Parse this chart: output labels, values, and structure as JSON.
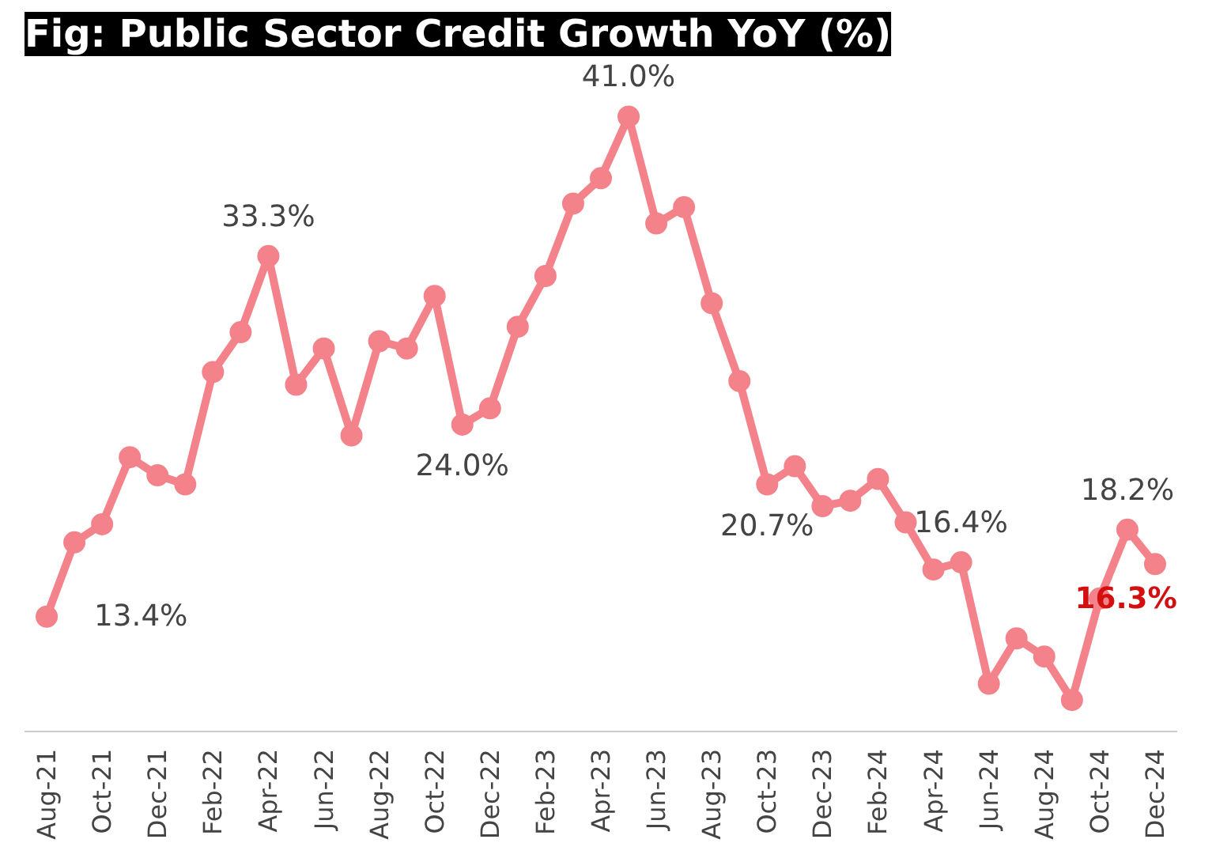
{
  "chart_data": {
    "type": "line",
    "title": "Fig: Public Sector Credit Growth YoY (%)",
    "categories": [
      "Aug-21",
      null,
      "Oct-21",
      null,
      "Dec-21",
      null,
      "Feb-22",
      null,
      "Apr-22",
      null,
      "Jun-22",
      null,
      "Aug-22",
      null,
      "Oct-22",
      null,
      "Dec-22",
      null,
      "Feb-23",
      null,
      "Apr-23",
      null,
      "Jun-23",
      null,
      "Aug-23",
      null,
      "Oct-23",
      null,
      "Dec-23",
      null,
      "Feb-24",
      null,
      "Apr-24",
      null,
      "Jun-24",
      null,
      "Aug-24",
      null,
      "Oct-24",
      null,
      "Dec-24"
    ],
    "series": [
      {
        "color": "#f4828a",
        "values": [
          13.4,
          17.5,
          18.5,
          22.2,
          21.2,
          20.7,
          26.9,
          29.1,
          33.3,
          26.2,
          28.2,
          23.4,
          28.6,
          28.2,
          31.1,
          24.0,
          24.9,
          29.4,
          32.2,
          36.2,
          37.6,
          41.0,
          35.1,
          36.0,
          30.7,
          26.4,
          20.7,
          21.7,
          19.5,
          19.8,
          21.0,
          18.6,
          16.0,
          16.4,
          9.7,
          12.2,
          11.2,
          8.8,
          14.4,
          18.2,
          16.3
        ],
        "value_labels": [
          "13.4%",
          null,
          null,
          null,
          null,
          null,
          null,
          null,
          "33.3%",
          null,
          null,
          null,
          null,
          null,
          null,
          "24.0%",
          null,
          null,
          null,
          null,
          null,
          "41.0%",
          null,
          null,
          null,
          null,
          "20.7%",
          null,
          null,
          null,
          null,
          null,
          null,
          "16.4%",
          null,
          null,
          null,
          null,
          null,
          "18.2%",
          "16.3%"
        ]
      }
    ],
    "marker": "circle",
    "line_style": "solid",
    "grid": false,
    "tick_labels": "x"
  }
}
